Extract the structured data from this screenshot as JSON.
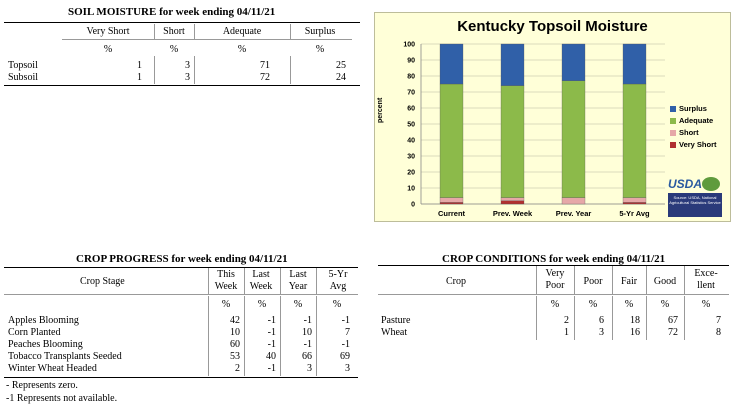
{
  "soil": {
    "title": "SOIL MOISTURE for week ending 04/11/21",
    "headers": [
      "Very Short",
      "Short",
      "Adequate",
      "Surplus"
    ],
    "unit": "%",
    "rows": [
      {
        "label": "Topsoil",
        "values": [
          "1",
          "3",
          "71",
          "25"
        ]
      },
      {
        "label": "Subsoil",
        "values": [
          "1",
          "3",
          "72",
          "24"
        ]
      }
    ]
  },
  "chart_data": {
    "type": "bar",
    "stacked": true,
    "title": "Kentucky Topsoil Moisture",
    "ylabel": "percent",
    "xlabel": "",
    "ylim": [
      0,
      100
    ],
    "yticks": [
      "100",
      "90",
      "80",
      "70",
      "60",
      "50",
      "40",
      "30",
      "20",
      "10",
      "0"
    ],
    "categories": [
      "Current",
      "Prev. Week",
      "Prev. Year",
      "5-Yr Avg"
    ],
    "series": [
      {
        "name": "Very Short",
        "color": "#b03030",
        "values": [
          1,
          2,
          0,
          1
        ]
      },
      {
        "name": "Short",
        "color": "#e6a8a8",
        "values": [
          3,
          2,
          4,
          3
        ]
      },
      {
        "name": "Adequate",
        "color": "#8cba4a",
        "values": [
          71,
          70,
          73,
          71
        ]
      },
      {
        "name": "Surplus",
        "color": "#3060a8",
        "values": [
          25,
          26,
          23,
          25
        ]
      }
    ],
    "legend_order": [
      "Surplus",
      "Adequate",
      "Short",
      "Very Short"
    ],
    "legend_position": "right",
    "grid": true,
    "logo": {
      "text": "USDA",
      "caption": "Source: USDA, National Agricultural Statistics Service"
    }
  },
  "progress": {
    "title": "CROP PROGRESS for week ending 04/11/21",
    "stage_header": "Crop Stage",
    "headers": [
      {
        "line1": "This",
        "line2": "Week"
      },
      {
        "line1": "Last",
        "line2": "Week"
      },
      {
        "line1": "Last",
        "line2": "Year"
      },
      {
        "line1": "5-Yr",
        "line2": "Avg"
      }
    ],
    "unit": "%",
    "rows": [
      {
        "label": "Apples Blooming",
        "values": [
          "42",
          "-1",
          "-1",
          "-1"
        ]
      },
      {
        "label": "Corn Planted",
        "values": [
          "10",
          "-1",
          "10",
          "7"
        ]
      },
      {
        "label": "Peaches Blooming",
        "values": [
          "60",
          "-1",
          "-1",
          "-1"
        ]
      },
      {
        "label": "Tobacco Transplants Seeded",
        "values": [
          "53",
          "40",
          "66",
          "69"
        ]
      },
      {
        "label": "Winter Wheat Headed",
        "values": [
          "2",
          "-1",
          "3",
          "3"
        ]
      }
    ],
    "notes": [
      "- Represents zero.",
      "-1 Represents not available."
    ]
  },
  "conditions": {
    "title": "CROP CONDITIONS for week ending 04/11/21",
    "crop_header": "Crop",
    "headers": [
      {
        "line1": "Very",
        "line2": "Poor"
      },
      {
        "line1": "Poor",
        "line2": ""
      },
      {
        "line1": "Fair",
        "line2": ""
      },
      {
        "line1": "Good",
        "line2": ""
      },
      {
        "line1": "Exce-",
        "line2": "llent"
      }
    ],
    "unit": "%",
    "rows": [
      {
        "label": "Pasture",
        "values": [
          "2",
          "6",
          "18",
          "67",
          "7"
        ]
      },
      {
        "label": "Wheat",
        "values": [
          "1",
          "3",
          "16",
          "72",
          "8"
        ]
      }
    ]
  }
}
